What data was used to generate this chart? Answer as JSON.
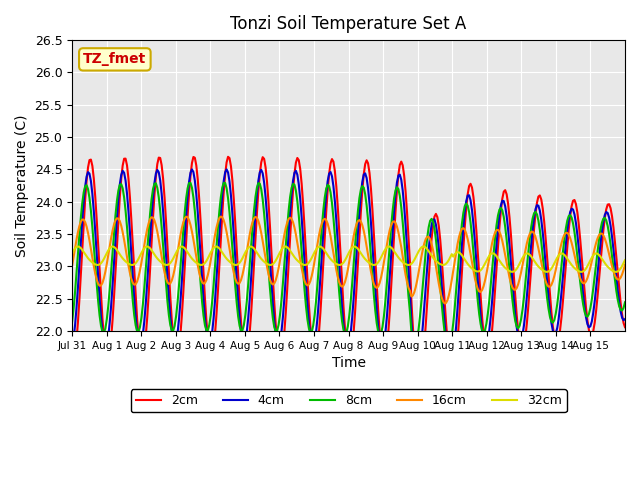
{
  "title": "Tonzi Soil Temperature Set A",
  "xlabel": "Time",
  "ylabel": "Soil Temperature (C)",
  "ylim": [
    22.0,
    26.5
  ],
  "annotation_text": "TZ_fmet",
  "annotation_bg": "#ffffcc",
  "annotation_border": "#ccaa00",
  "plot_bg": "#e8e8e8",
  "line_colors": {
    "2cm": "#ff0000",
    "4cm": "#0000cc",
    "8cm": "#00bb00",
    "16cm": "#ff8800",
    "32cm": "#dddd00"
  },
  "line_widths": {
    "2cm": 1.5,
    "4cm": 1.5,
    "8cm": 1.5,
    "16cm": 1.5,
    "32cm": 1.5
  },
  "xtick_labels": [
    "Jul 31",
    "Aug 1",
    "Aug 2",
    "Aug 3",
    "Aug 4",
    "Aug 5",
    "Aug 6",
    "Aug 7",
    "Aug 8",
    "Aug 9",
    "Aug 10",
    "Aug 11",
    "Aug 12",
    "Aug 13",
    "Aug 14",
    "Aug 15"
  ],
  "ytick_values": [
    22.0,
    22.5,
    23.0,
    23.5,
    24.0,
    24.5,
    25.0,
    25.5,
    26.0,
    26.5
  ],
  "ytick_labels": [
    "22.0",
    "22.5",
    "23.0",
    "23.5",
    "24.0",
    "24.5",
    "25.0",
    "25.5",
    "26.0",
    "26.5"
  ]
}
